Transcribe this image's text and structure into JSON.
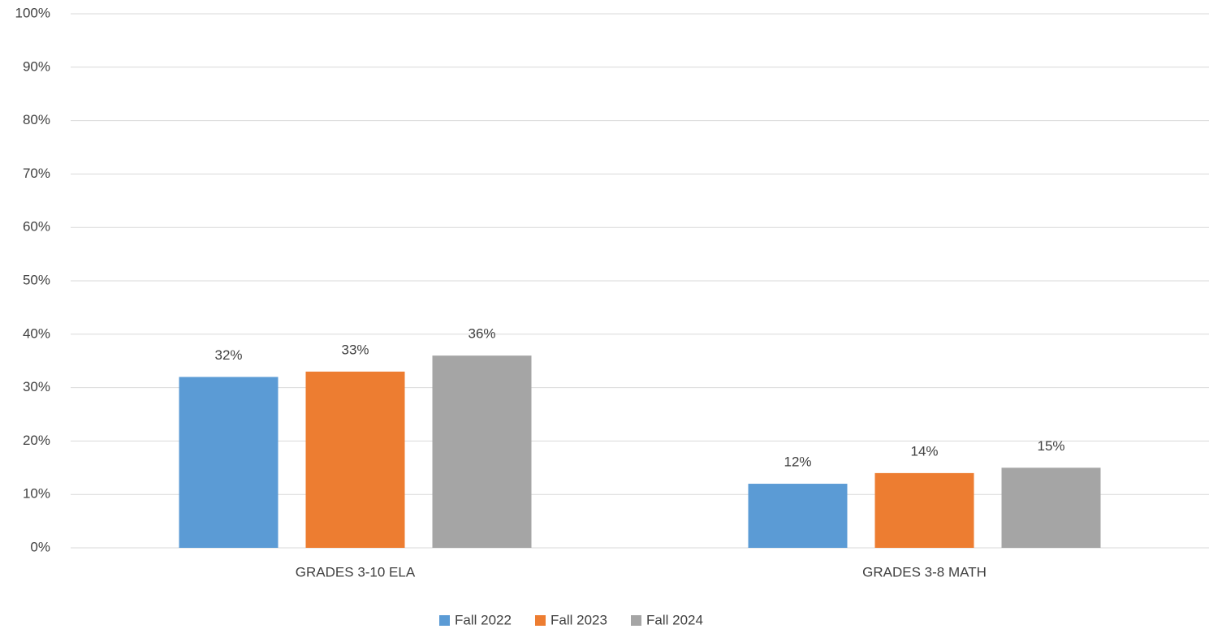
{
  "chart_data": {
    "type": "bar",
    "categories": [
      "GRADES 3-10 ELA",
      "GRADES 3-8 MATH"
    ],
    "series": [
      {
        "name": "Fall 2022",
        "color": "#5b9bd5",
        "values": [
          32,
          12
        ],
        "value_labels": [
          "32%",
          "12%"
        ]
      },
      {
        "name": "Fall 2023",
        "color": "#ed7d31",
        "values": [
          33,
          14
        ],
        "value_labels": [
          "33%",
          "14%"
        ]
      },
      {
        "name": "Fall 2024",
        "color": "#a5a5a5",
        "values": [
          36,
          15
        ],
        "value_labels": [
          "36%",
          "15%"
        ]
      }
    ],
    "ylim": [
      0,
      100
    ],
    "yticks": [
      {
        "value": 0,
        "label": "0%"
      },
      {
        "value": 10,
        "label": "10%"
      },
      {
        "value": 20,
        "label": "20%"
      },
      {
        "value": 30,
        "label": "30%"
      },
      {
        "value": 40,
        "label": "40%"
      },
      {
        "value": 50,
        "label": "50%"
      },
      {
        "value": 60,
        "label": "60%"
      },
      {
        "value": 70,
        "label": "70%"
      },
      {
        "value": 80,
        "label": "80%"
      },
      {
        "value": 90,
        "label": "90%"
      },
      {
        "value": 100,
        "label": "100%"
      }
    ],
    "grid": true,
    "legend": "bottom"
  }
}
